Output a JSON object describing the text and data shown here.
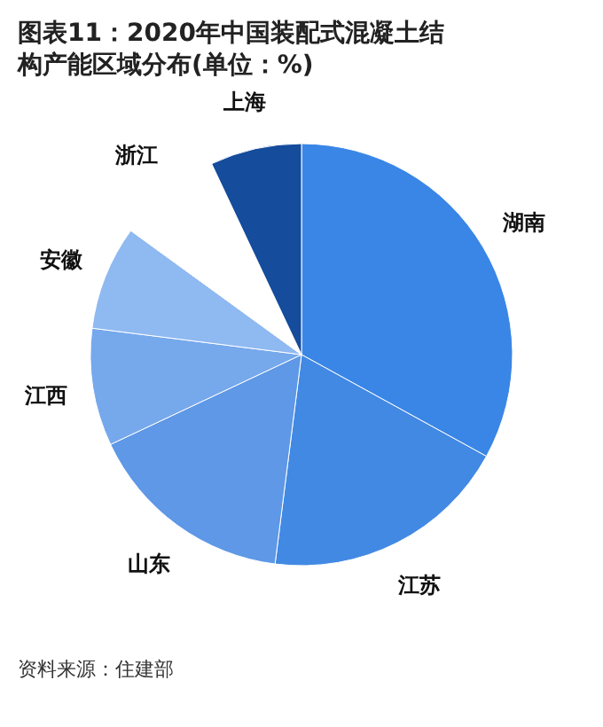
{
  "chart_data": {
    "type": "pie",
    "title": "图表11：2020年中国装配式混凝土结构产能区域分布(单位：%)",
    "categories": [
      "湖南",
      "江苏",
      "山东",
      "江西",
      "安徽",
      "浙江",
      "上海"
    ],
    "values": [
      33,
      19,
      16,
      9,
      8,
      8,
      7
    ],
    "colors": [
      "#3a86e6",
      "#4289e3",
      "#5e98e6",
      "#76a8ec",
      "#8fb9f1",
      "#ffffff",
      "#154c9c"
    ],
    "annotations": [
      "资料来源：住建部"
    ]
  }
}
